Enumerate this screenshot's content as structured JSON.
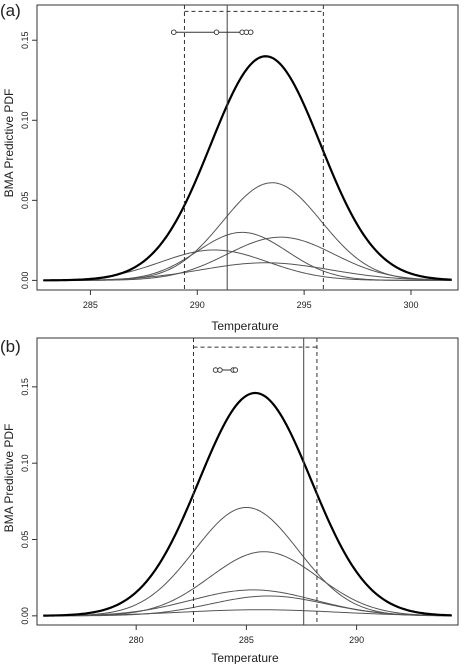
{
  "chart_data": [
    {
      "panel_label": "(a)",
      "type": "line",
      "xlabel": "Temperature",
      "ylabel": "BMA Predictive PDF",
      "xlim": [
        282.5,
        302.2
      ],
      "ylim": [
        -0.006,
        0.172
      ],
      "xticks": [
        285,
        290,
        295,
        300
      ],
      "yticks": [
        0.0,
        0.05,
        0.1,
        0.15
      ],
      "ytick_labels": [
        "0.00",
        "0.05",
        "0.10",
        "0.15"
      ],
      "bma_pdf": {
        "mean": 293.2,
        "sd": 2.57,
        "peak": 0.14
      },
      "member_pdfs": [
        {
          "mean": 293.5,
          "sd": 2.3,
          "peak": 0.061
        },
        {
          "mean": 292.1,
          "sd": 2.1,
          "peak": 0.03
        },
        {
          "mean": 293.9,
          "sd": 2.5,
          "peak": 0.027
        },
        {
          "mean": 290.8,
          "sd": 2.5,
          "peak": 0.019
        },
        {
          "mean": 293.2,
          "sd": 3.0,
          "peak": 0.011
        }
      ],
      "interval_lines": [
        289.4,
        295.9
      ],
      "interval_box_top": 0.168,
      "observation_line": 291.4,
      "ensemble_members": [
        288.9,
        290.9,
        292.1,
        292.3,
        292.5
      ],
      "ensemble_y": 0.155
    },
    {
      "panel_label": "(b)",
      "type": "line",
      "xlabel": "Temperature",
      "ylabel": "BMA Predictive PDF",
      "xlim": [
        275.5,
        294.6
      ],
      "ylim": [
        -0.006,
        0.182
      ],
      "xticks": [
        280,
        285,
        290
      ],
      "yticks": [
        0.0,
        0.05,
        0.1,
        0.15
      ],
      "ytick_labels": [
        "0.00",
        "0.05",
        "0.10",
        "0.15"
      ],
      "bma_pdf": {
        "mean": 285.4,
        "sd": 2.55,
        "peak": 0.146
      },
      "member_pdfs": [
        {
          "mean": 285.0,
          "sd": 2.35,
          "peak": 0.071
        },
        {
          "mean": 285.8,
          "sd": 2.45,
          "peak": 0.042
        },
        {
          "mean": 285.3,
          "sd": 2.8,
          "peak": 0.017
        },
        {
          "mean": 286.0,
          "sd": 2.6,
          "peak": 0.013
        },
        {
          "mean": 285.6,
          "sd": 3.5,
          "peak": 0.004
        }
      ],
      "interval_lines": [
        282.6,
        288.2
      ],
      "interval_box_top": 0.176,
      "observation_line": 287.6,
      "ensemble_members": [
        283.6,
        283.8,
        284.4,
        284.5
      ],
      "ensemble_y": 0.161
    }
  ]
}
